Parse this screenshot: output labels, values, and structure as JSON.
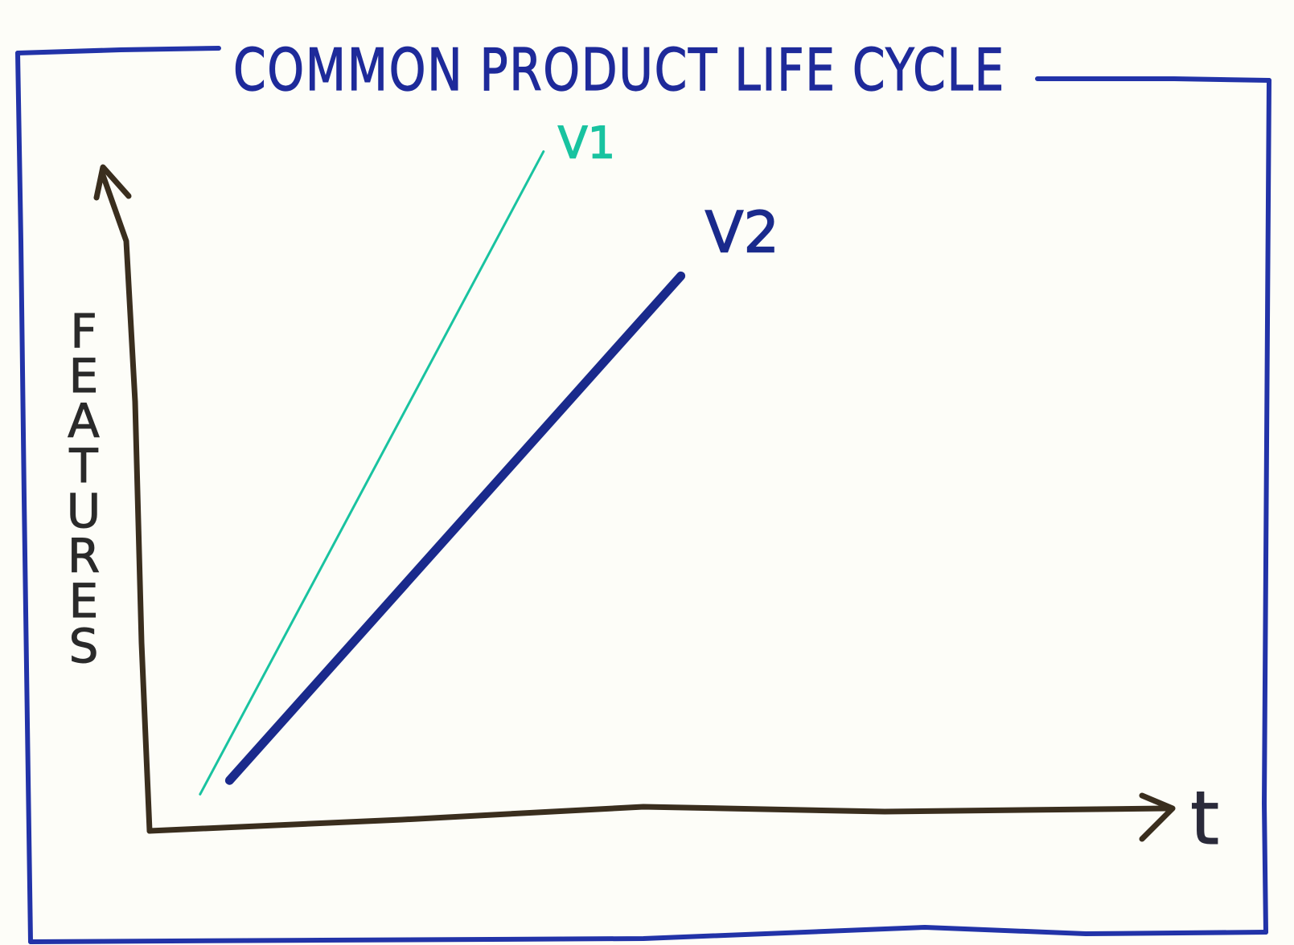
{
  "chart_data": {
    "type": "line",
    "title": "COMMON PRODUCT LIFE CYCLE",
    "xlabel": "t",
    "ylabel": "FEATURES",
    "xlim": [
      0,
      10
    ],
    "ylim": [
      0,
      10
    ],
    "grid": false,
    "series": [
      {
        "name": "V1",
        "color": "#19c3a0",
        "x": [
          0.4,
          3.9
        ],
        "y": [
          0.6,
          9.9
        ]
      },
      {
        "name": "V2",
        "color": "#1a2a8c",
        "x": [
          0.7,
          5.3
        ],
        "y": [
          0.8,
          8.1
        ]
      }
    ]
  },
  "colors": {
    "frame": "#2233a8",
    "axis": "#3a2e1e",
    "title": "#1e2a9a",
    "paper": "#fdfdf8"
  }
}
